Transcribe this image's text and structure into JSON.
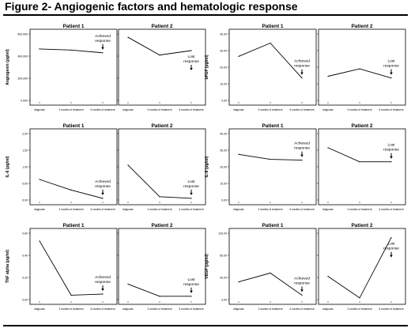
{
  "figure_title": "Figure 2- Angiogenic factors and hematologic response",
  "colors": {
    "line": "#000000",
    "frame": "#000000",
    "background": "#ffffff"
  },
  "chart_data": [
    {
      "type": "line",
      "title": "Patient 1",
      "ylabel": "Angiogenin (pg/ml)",
      "categories": [
        "diagnosis",
        "3 months of treatment",
        "6 months of treatment"
      ],
      "ylim": [
        0,
        600000
      ],
      "yticks": [
        0,
        200000,
        400000,
        600000
      ],
      "ytick_labels": [
        "0,000",
        "200,000",
        "400,000",
        "600,000"
      ],
      "series": [
        {
          "values": [
            465000,
            455000,
            430000
          ]
        }
      ],
      "annotation": {
        "text": [
          "Achieved",
          "response"
        ],
        "x": 2
      }
    },
    {
      "type": "line",
      "title": "Patient 2",
      "ylabel": "",
      "categories": [
        "diagnosis",
        "3 months of treatment",
        "6 months of treatment"
      ],
      "ylim": [
        0,
        600000
      ],
      "yticks": [
        0,
        200000,
        400000,
        600000
      ],
      "ytick_labels": [],
      "series": [
        {
          "values": [
            570000,
            410000,
            450000
          ]
        }
      ],
      "annotation": {
        "text": [
          "Lost",
          "response"
        ],
        "x": 2
      }
    },
    {
      "type": "line",
      "title": "Patient 1",
      "ylabel": "bFGF (pg/ml)",
      "categories": [
        "diagnosis",
        "3 months of treatment",
        "6 months of treatment"
      ],
      "ylim": [
        0,
        40
      ],
      "yticks": [
        0,
        10,
        20,
        30,
        40
      ],
      "ytick_labels": [
        "0,00",
        "10,00",
        "20,00",
        "30,00",
        "40,00"
      ],
      "series": [
        {
          "values": [
            26.5,
            34.5,
            13.5
          ]
        }
      ],
      "annotation": {
        "text": [
          "Achieved",
          "response"
        ],
        "x": 2
      }
    },
    {
      "type": "line",
      "title": "Patient 2",
      "ylabel": "",
      "categories": [
        "diagnosis",
        "3 months of treatment",
        "6 months of treatment"
      ],
      "ylim": [
        0,
        40
      ],
      "yticks": [
        0,
        10,
        20,
        30,
        40
      ],
      "ytick_labels": [],
      "series": [
        {
          "values": [
            14.5,
            19,
            13.5
          ]
        }
      ],
      "annotation": {
        "text": [
          "Lost",
          "response"
        ],
        "x": 2
      }
    },
    {
      "type": "line",
      "title": "Patient 1",
      "ylabel": "IL-6 (pg/ml)",
      "categories": [
        "diagnosis",
        "3 months of treatment",
        "6 months of treatment"
      ],
      "ylim": [
        0,
        2
      ],
      "yticks": [
        0,
        0.5,
        1,
        1.5,
        2
      ],
      "ytick_labels": [
        "0,00",
        "0,50",
        "1,00",
        "1,50",
        "2,00"
      ],
      "series": [
        {
          "values": [
            0.62,
            0.3,
            0.05
          ]
        }
      ],
      "annotation": {
        "text": [
          "Achieved",
          "response"
        ],
        "x": 2
      }
    },
    {
      "type": "line",
      "title": "Patient 2",
      "ylabel": "",
      "categories": [
        "diagnosis",
        "3 months of treatment",
        "6 months of treatment"
      ],
      "ylim": [
        0,
        2
      ],
      "yticks": [
        0,
        0.5,
        1,
        1.5,
        2
      ],
      "ytick_labels": [],
      "series": [
        {
          "values": [
            1.05,
            0.1,
            0.05
          ]
        }
      ],
      "annotation": {
        "text": [
          "Lost",
          "response"
        ],
        "x": 2
      }
    },
    {
      "type": "line",
      "title": "Patient 1",
      "ylabel": "IL-8 (pg/ml)",
      "categories": [
        "diagnosis",
        "3 months of treatment",
        "6 months of treatment"
      ],
      "ylim": [
        0,
        40
      ],
      "yticks": [
        0,
        10,
        20,
        30,
        40
      ],
      "ytick_labels": [
        "0,00",
        "10,00",
        "20,00",
        "30,00",
        "40,00"
      ],
      "series": [
        {
          "values": [
            27.5,
            24.5,
            24
          ]
        }
      ],
      "annotation": {
        "text": [
          "Achieved",
          "response"
        ],
        "x": 2
      }
    },
    {
      "type": "line",
      "title": "Patient 2",
      "ylabel": "",
      "categories": [
        "diagnosis",
        "3 months of treatment",
        "6 months of treatment"
      ],
      "ylim": [
        0,
        40
      ],
      "yticks": [
        0,
        10,
        20,
        30,
        40
      ],
      "ytick_labels": [],
      "series": [
        {
          "values": [
            31.5,
            23,
            23
          ]
        }
      ],
      "annotation": {
        "text": [
          "Lost",
          "response"
        ],
        "x": 2
      }
    },
    {
      "type": "line",
      "title": "Patient 1",
      "ylabel": "TNF alpha (pg/ml)",
      "categories": [
        "diagnosis",
        "3 months of treatment",
        "6 months of treatment"
      ],
      "ylim": [
        0,
        0.6
      ],
      "yticks": [
        0,
        0.2,
        0.4,
        0.6
      ],
      "ytick_labels": [
        "0,00",
        "0,20",
        "0,40",
        "0,60"
      ],
      "series": [
        {
          "values": [
            0.53,
            0.04,
            0.05
          ]
        }
      ],
      "annotation": {
        "text": [
          "Achieved",
          "response"
        ],
        "x": 2
      }
    },
    {
      "type": "line",
      "title": "Patient 2",
      "ylabel": "",
      "categories": [
        "diagnosis",
        "3 months of treatment",
        "6 months of treatment"
      ],
      "ylim": [
        0,
        0.6
      ],
      "yticks": [
        0,
        0.2,
        0.4,
        0.6
      ],
      "ytick_labels": [],
      "series": [
        {
          "values": [
            0.14,
            0.03,
            0.03
          ]
        }
      ],
      "annotation": {
        "text": [
          "Lost",
          "response"
        ],
        "x": 2
      }
    },
    {
      "type": "line",
      "title": "Patient 1",
      "ylabel": "VEGF (pg/ml)",
      "categories": [
        "diagnosis",
        "3 months of treatment",
        "6 months of treatment"
      ],
      "ylim": [
        0,
        120
      ],
      "yticks": [
        0,
        40,
        80,
        120
      ],
      "ytick_labels": [
        "0,00",
        "40,00",
        "80,00",
        "120,00"
      ],
      "series": [
        {
          "values": [
            32,
            48,
            8
          ]
        }
      ],
      "annotation": {
        "text": [
          "Achieved",
          "response"
        ],
        "x": 2
      }
    },
    {
      "type": "line",
      "title": "Patient 2",
      "ylabel": "",
      "categories": [
        "diagnosis",
        "3 months of treatment",
        "6 months of treatment"
      ],
      "ylim": [
        0,
        120
      ],
      "yticks": [
        0,
        40,
        80,
        120
      ],
      "ytick_labels": [],
      "series": [
        {
          "values": [
            42,
            3,
            112
          ]
        }
      ],
      "annotation": {
        "text": [
          "Lost",
          "response"
        ],
        "x": 2
      }
    }
  ]
}
